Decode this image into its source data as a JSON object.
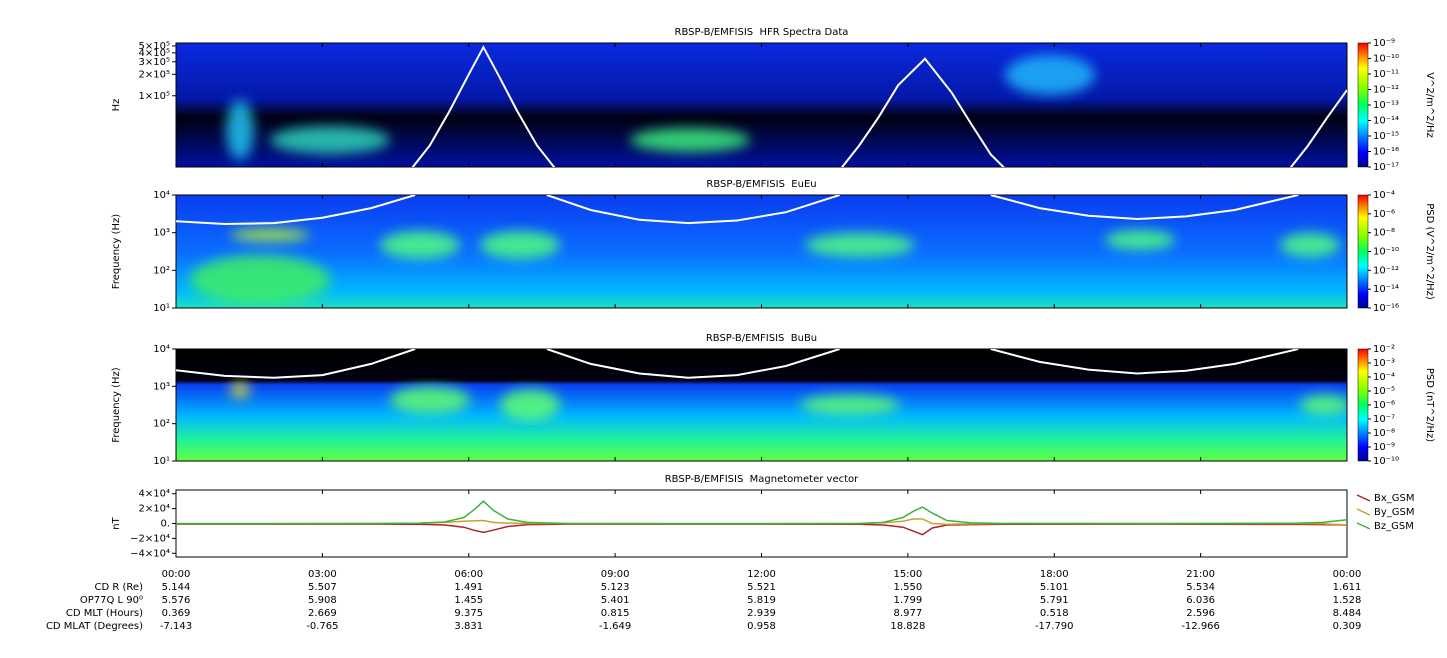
{
  "chart_data": [
    {
      "type": "spectrogram",
      "title": "RBSP-B/EMFISIS  HFR Spectra Data",
      "ylabel": "Hz",
      "log": true,
      "xlim": [
        0,
        24
      ],
      "ylim": [
        10000,
        550000
      ],
      "yticks": [
        {
          "value": 500000,
          "label": "5×10⁵"
        },
        {
          "value": 400000,
          "label": "4×10⁵"
        },
        {
          "value": 300000,
          "label": "3×10⁵"
        },
        {
          "value": 200000,
          "label": "2×10⁵"
        },
        {
          "value": 100000,
          "label": "1×10⁵"
        }
      ],
      "colorbar": {
        "label": "V^2/m^2/Hz",
        "lim": [
          1e-17,
          1e-09
        ],
        "ticks": [
          {
            "value": 1e-09,
            "label": "10⁻⁹"
          },
          {
            "value": 1e-10,
            "label": "10⁻¹⁰"
          },
          {
            "value": 1e-11,
            "label": "10⁻¹¹"
          },
          {
            "value": 1e-12,
            "label": "10⁻¹²"
          },
          {
            "value": 1e-13,
            "label": "10⁻¹³"
          },
          {
            "value": 1e-14,
            "label": "10⁻¹⁴"
          },
          {
            "value": 1e-15,
            "label": "10⁻¹⁵"
          },
          {
            "value": 1e-16,
            "label": "10⁻¹⁶"
          },
          {
            "value": 1e-17,
            "label": "10⁻¹⁷"
          }
        ]
      },
      "curve": {
        "color": "#ffffff",
        "x": [
          4.8,
          5.2,
          5.6,
          6.0,
          6.3,
          6.6,
          7.0,
          7.4,
          7.8,
          10.5,
          13.6,
          14.0,
          14.4,
          14.8,
          15.35,
          15.9,
          16.3,
          16.7,
          17.1,
          20,
          22.8,
          23.2,
          23.6,
          24
        ],
        "values": [
          9000,
          20000,
          60000,
          200000,
          480000,
          200000,
          60000,
          20000,
          9000,
          null,
          9000,
          20000,
          50000,
          140000,
          330000,
          110000,
          40000,
          15000,
          8000,
          null,
          9000,
          20000,
          50000,
          120000
        ]
      }
    },
    {
      "type": "spectrogram",
      "title": "RBSP-B/EMFISIS  EuEu",
      "ylabel": "Frequency (Hz)",
      "log": true,
      "xlim": [
        0,
        24
      ],
      "ylim": [
        10,
        10000
      ],
      "yticks": [
        {
          "value": 10000,
          "label": "10⁴"
        },
        {
          "value": 1000,
          "label": "10³"
        },
        {
          "value": 100,
          "label": "10²"
        },
        {
          "value": 10,
          "label": "10¹"
        }
      ],
      "colorbar": {
        "label": "PSD (V^2/m^2/Hz)",
        "lim": [
          1e-16,
          0.0001
        ],
        "ticks": [
          {
            "value": 0.0001,
            "label": "10⁻⁴"
          },
          {
            "value": 1e-06,
            "label": "10⁻⁶"
          },
          {
            "value": 1e-08,
            "label": "10⁻⁸"
          },
          {
            "value": 1e-10,
            "label": "10⁻¹⁰"
          },
          {
            "value": 1e-12,
            "label": "10⁻¹²"
          },
          {
            "value": 1e-14,
            "label": "10⁻¹⁴"
          },
          {
            "value": 1e-16,
            "label": "10⁻¹⁶"
          }
        ]
      },
      "curve": {
        "color": "#ffffff",
        "x": [
          0,
          1,
          2,
          3,
          4,
          4.9,
          6,
          7.6,
          8.5,
          9.5,
          10.5,
          11.5,
          12.5,
          13.6,
          15,
          16.7,
          17.7,
          18.7,
          19.7,
          20.7,
          21.7,
          23
        ],
        "values": [
          2000,
          1700,
          1800,
          2500,
          4500,
          10000,
          null,
          10000,
          4000,
          2200,
          1800,
          2100,
          3500,
          10000,
          null,
          10000,
          4500,
          2800,
          2300,
          2700,
          4000,
          10000
        ]
      }
    },
    {
      "type": "spectrogram",
      "title": "RBSP-B/EMFISIS  BuBu",
      "ylabel": "Frequency (Hz)",
      "log": true,
      "xlim": [
        0,
        24
      ],
      "ylim": [
        10,
        10000
      ],
      "yticks": [
        {
          "value": 10000,
          "label": "10⁴"
        },
        {
          "value": 1000,
          "label": "10³"
        },
        {
          "value": 100,
          "label": "10²"
        },
        {
          "value": 10,
          "label": "10¹"
        }
      ],
      "colorbar": {
        "label": "PSD (nT^2/Hz)",
        "lim": [
          1e-10,
          0.01
        ],
        "ticks": [
          {
            "value": 0.01,
            "label": "10⁻²"
          },
          {
            "value": 0.001,
            "label": "10⁻³"
          },
          {
            "value": 0.0001,
            "label": "10⁻⁴"
          },
          {
            "value": 1e-05,
            "label": "10⁻⁵"
          },
          {
            "value": 1e-06,
            "label": "10⁻⁶"
          },
          {
            "value": 1e-07,
            "label": "10⁻⁷"
          },
          {
            "value": 1e-08,
            "label": "10⁻⁸"
          },
          {
            "value": 1e-09,
            "label": "10⁻⁹"
          },
          {
            "value": 1e-10,
            "label": "10⁻¹⁰"
          }
        ]
      },
      "curve": {
        "color": "#ffffff",
        "x": [
          0,
          1,
          2,
          3,
          4,
          4.9,
          6,
          7.6,
          8.5,
          9.5,
          10.5,
          11.5,
          12.5,
          13.6,
          15,
          16.7,
          17.7,
          18.7,
          19.7,
          20.7,
          21.7,
          23
        ],
        "values": [
          2700,
          1900,
          1700,
          2000,
          4000,
          10000,
          null,
          10000,
          4000,
          2200,
          1700,
          2000,
          3500,
          10000,
          null,
          10000,
          4500,
          2800,
          2200,
          2600,
          4000,
          10000
        ]
      }
    },
    {
      "type": "line",
      "title": "RBSP-B/EMFISIS  Magnetometer vector",
      "ylabel": "nT",
      "xlim": [
        0,
        24
      ],
      "ylim": [
        -45000,
        45000
      ],
      "xticks": [
        {
          "value": 0,
          "label": "00:00"
        },
        {
          "value": 3,
          "label": "03:00"
        },
        {
          "value": 6,
          "label": "06:00"
        },
        {
          "value": 9,
          "label": "09:00"
        },
        {
          "value": 12,
          "label": "12:00"
        },
        {
          "value": 15,
          "label": "15:00"
        },
        {
          "value": 18,
          "label": "18:00"
        },
        {
          "value": 21,
          "label": "21:00"
        },
        {
          "value": 24,
          "label": "00:00"
        }
      ],
      "yticks": [
        {
          "value": 40000,
          "label": "4×10⁴"
        },
        {
          "value": 20000,
          "label": "2×10⁴"
        },
        {
          "value": 0,
          "label": "0."
        },
        {
          "value": -20000,
          "label": "−2×10⁴"
        },
        {
          "value": -40000,
          "label": "−4×10⁴"
        }
      ],
      "x": [
        0,
        2,
        4,
        5,
        5.5,
        5.9,
        6.1,
        6.3,
        6.5,
        6.8,
        7.2,
        8,
        10,
        12,
        14,
        14.5,
        14.9,
        15.1,
        15.3,
        15.5,
        15.8,
        16.3,
        17,
        20,
        23,
        23.5,
        24
      ],
      "series": [
        {
          "name": "Bx_GSM",
          "color": "#b22222",
          "values": [
            -800,
            -800,
            -800,
            -1000,
            -2000,
            -5000,
            -9000,
            -12000,
            -9000,
            -4000,
            -1500,
            -800,
            -800,
            -800,
            -1000,
            -2000,
            -5000,
            -10000,
            -15000,
            -6000,
            -2000,
            -1500,
            -1000,
            -800,
            -1200,
            -1500,
            -2000
          ]
        },
        {
          "name": "By_GSM",
          "color": "#c8a032",
          "values": [
            0,
            0,
            200,
            500,
            1500,
            3000,
            3500,
            4000,
            1500,
            500,
            200,
            0,
            0,
            0,
            200,
            1000,
            3000,
            6000,
            6000,
            0,
            -1000,
            -500,
            0,
            0,
            0,
            -300,
            -2000
          ]
        },
        {
          "name": "Bz_GSM",
          "color": "#3cb43c",
          "values": [
            -300,
            -300,
            -200,
            500,
            2000,
            8000,
            18000,
            30000,
            18000,
            6000,
            1500,
            0,
            -300,
            -300,
            0,
            1500,
            8000,
            16000,
            22000,
            14000,
            4000,
            800,
            0,
            -200,
            500,
            1500,
            5000
          ]
        }
      ]
    }
  ],
  "ephemeris": {
    "rows": [
      {
        "label": "CD R (Re)",
        "values": [
          "5.144",
          "5.507",
          "1.491",
          "5.123",
          "5.521",
          "1.550",
          "5.101",
          "5.534",
          "1.611"
        ]
      },
      {
        "label": "OP77Q L 90⁰",
        "values": [
          "5.576",
          "5.908",
          "1.455",
          "5.401",
          "5.819",
          "1.799",
          "5.791",
          "6.036",
          "1.528"
        ]
      },
      {
        "label": "CD MLT (Hours)",
        "values": [
          "0.369",
          "2.669",
          "9.375",
          "0.815",
          "2.939",
          "8.977",
          "0.518",
          "2.596",
          "8.484"
        ]
      },
      {
        "label": "CD MLAT (Degrees)",
        "values": [
          "-7.143",
          "-0.765",
          "3.831",
          "-1.649",
          "0.958",
          "18.828",
          "-17.790",
          "-12.966",
          "0.309"
        ]
      }
    ]
  }
}
